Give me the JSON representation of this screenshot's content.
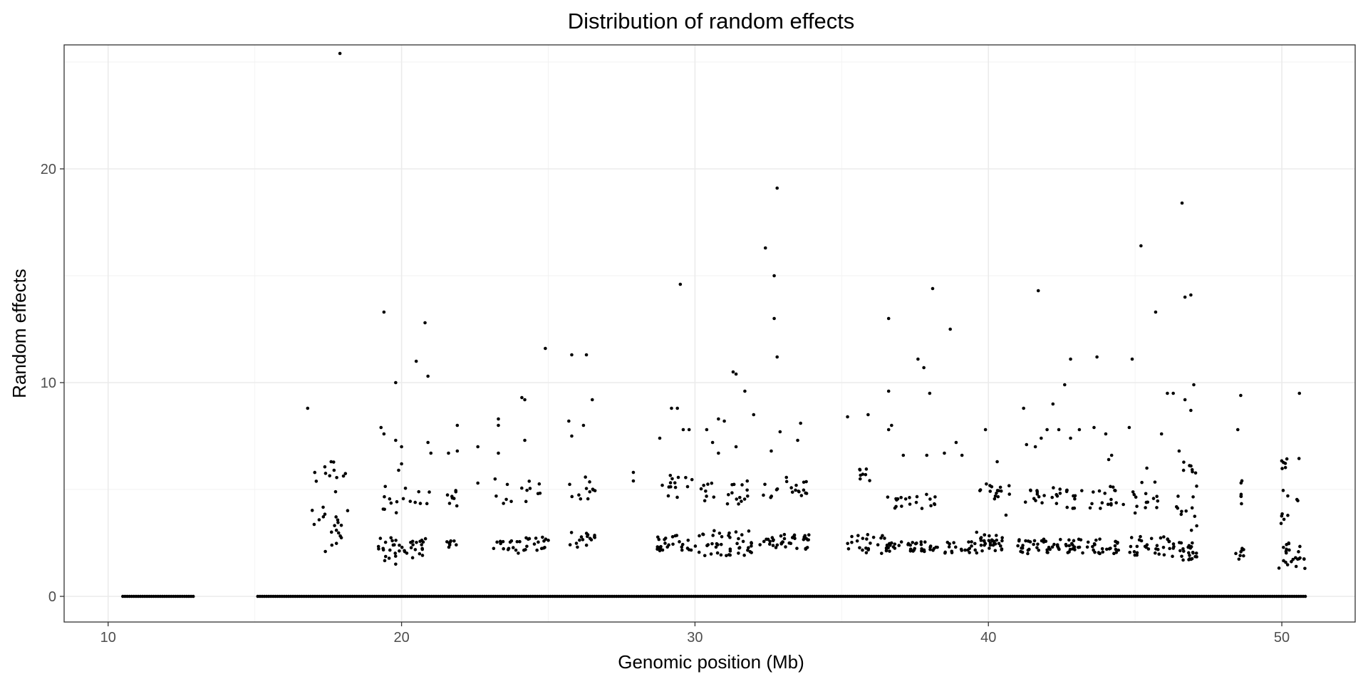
{
  "chart_data": {
    "type": "scatter",
    "title": "Distribution of random effects",
    "xlabel": "Genomic position (Mb)",
    "ylabel": "Random effects",
    "xlim": [
      8.5,
      52.5
    ],
    "ylim": [
      -1.2,
      25.8
    ],
    "x_major_ticks": [
      10,
      20,
      30,
      40,
      50
    ],
    "x_minor_ticks": [
      15,
      25,
      35,
      45
    ],
    "y_major_ticks": [
      0,
      10,
      20
    ],
    "y_minor_ticks": [
      5,
      15,
      25
    ],
    "x_tick_labels": [
      "10",
      "20",
      "30",
      "40",
      "50"
    ],
    "y_tick_labels": [
      "0",
      "10",
      "20"
    ],
    "grid": true,
    "legend": "none",
    "point_color": "#000000",
    "zero_effect_ranges_mb": [
      [
        10.5,
        12.9
      ],
      [
        15.1,
        50.8
      ]
    ],
    "clusters": [
      {
        "x": [
          16.8,
          18.2
        ],
        "y": [
          2.0,
          6.3
        ],
        "n": 30
      },
      {
        "x": [
          19.2,
          20.1
        ],
        "y": [
          1.5,
          2.8
        ],
        "n": 22
      },
      {
        "x": [
          20.1,
          21.0
        ],
        "y": [
          1.8,
          2.7
        ],
        "n": 18
      },
      {
        "x": [
          19.2,
          21.0
        ],
        "y": [
          3.9,
          5.3
        ],
        "n": 16
      },
      {
        "x": [
          21.5,
          22.0
        ],
        "y": [
          2.2,
          2.6
        ],
        "n": 8
      },
      {
        "x": [
          21.5,
          22.0
        ],
        "y": [
          4.2,
          5.3
        ],
        "n": 8
      },
      {
        "x": [
          23.1,
          24.0
        ],
        "y": [
          2.0,
          2.6
        ],
        "n": 14
      },
      {
        "x": [
          24.0,
          25.1
        ],
        "y": [
          2.1,
          2.8
        ],
        "n": 18
      },
      {
        "x": [
          23.1,
          25.1
        ],
        "y": [
          4.3,
          5.5
        ],
        "n": 14
      },
      {
        "x": [
          25.7,
          26.6
        ],
        "y": [
          2.3,
          3.0
        ],
        "n": 16
      },
      {
        "x": [
          25.7,
          26.6
        ],
        "y": [
          4.5,
          5.6
        ],
        "n": 12
      },
      {
        "x": [
          28.7,
          30.0
        ],
        "y": [
          2.1,
          2.9
        ],
        "n": 26
      },
      {
        "x": [
          28.7,
          30.0
        ],
        "y": [
          4.6,
          5.7
        ],
        "n": 14
      },
      {
        "x": [
          30.0,
          32.0
        ],
        "y": [
          1.9,
          3.1
        ],
        "n": 45
      },
      {
        "x": [
          30.0,
          32.0
        ],
        "y": [
          4.3,
          5.4
        ],
        "n": 22
      },
      {
        "x": [
          32.2,
          33.9
        ],
        "y": [
          2.2,
          2.9
        ],
        "n": 40
      },
      {
        "x": [
          32.2,
          33.9
        ],
        "y": [
          4.6,
          5.6
        ],
        "n": 20
      },
      {
        "x": [
          35.2,
          36.5
        ],
        "y": [
          2.0,
          3.0
        ],
        "n": 22
      },
      {
        "x": [
          35.6,
          36.0
        ],
        "y": [
          5.3,
          6.0
        ],
        "n": 8
      },
      {
        "x": [
          36.5,
          38.3
        ],
        "y": [
          2.1,
          2.6
        ],
        "n": 40
      },
      {
        "x": [
          36.5,
          38.3
        ],
        "y": [
          4.1,
          4.8
        ],
        "n": 20
      },
      {
        "x": [
          38.5,
          39.9
        ],
        "y": [
          2.0,
          2.6
        ],
        "n": 24
      },
      {
        "x": [
          39.7,
          40.5
        ],
        "y": [
          2.1,
          2.9
        ],
        "n": 30
      },
      {
        "x": [
          39.7,
          40.8
        ],
        "y": [
          4.5,
          5.3
        ],
        "n": 16
      },
      {
        "x": [
          41.0,
          42.5
        ],
        "y": [
          2.0,
          2.7
        ],
        "n": 36
      },
      {
        "x": [
          41.0,
          42.5
        ],
        "y": [
          4.3,
          5.2
        ],
        "n": 18
      },
      {
        "x": [
          42.6,
          44.5
        ],
        "y": [
          2.0,
          2.7
        ],
        "n": 44
      },
      {
        "x": [
          42.6,
          44.5
        ],
        "y": [
          4.1,
          5.2
        ],
        "n": 26
      },
      {
        "x": [
          44.8,
          46.2
        ],
        "y": [
          1.9,
          2.8
        ],
        "n": 30
      },
      {
        "x": [
          44.8,
          46.2
        ],
        "y": [
          4.0,
          5.4
        ],
        "n": 14
      },
      {
        "x": [
          46.2,
          47.1
        ],
        "y": [
          1.7,
          2.6
        ],
        "n": 28
      },
      {
        "x": [
          46.4,
          47.1
        ],
        "y": [
          3.0,
          6.8
        ],
        "n": 18
      },
      {
        "x": [
          48.4,
          48.7
        ],
        "y": [
          1.7,
          2.3
        ],
        "n": 8
      },
      {
        "x": [
          48.5,
          48.7
        ],
        "y": [
          3.7,
          6.1
        ],
        "n": 6
      },
      {
        "x": [
          49.9,
          50.8
        ],
        "y": [
          1.3,
          2.6
        ],
        "n": 24
      },
      {
        "x": [
          49.9,
          50.6
        ],
        "y": [
          3.4,
          6.9
        ],
        "n": 16
      }
    ],
    "points": [
      [
        17.9,
        25.4
      ],
      [
        32.8,
        19.1
      ],
      [
        46.6,
        18.4
      ],
      [
        32.4,
        16.3
      ],
      [
        45.2,
        16.4
      ],
      [
        32.7,
        15.0
      ],
      [
        29.5,
        14.6
      ],
      [
        38.1,
        14.4
      ],
      [
        41.7,
        14.3
      ],
      [
        46.7,
        14.0
      ],
      [
        46.9,
        14.1
      ],
      [
        45.7,
        13.3
      ],
      [
        19.4,
        13.3
      ],
      [
        32.7,
        13.0
      ],
      [
        36.6,
        13.0
      ],
      [
        20.8,
        12.8
      ],
      [
        38.7,
        12.5
      ],
      [
        24.9,
        11.6
      ],
      [
        20.5,
        11.0
      ],
      [
        25.8,
        11.3
      ],
      [
        26.3,
        11.3
      ],
      [
        32.8,
        11.2
      ],
      [
        42.8,
        11.1
      ],
      [
        43.7,
        11.2
      ],
      [
        44.9,
        11.1
      ],
      [
        37.6,
        11.1
      ],
      [
        37.8,
        10.7
      ],
      [
        31.3,
        10.5
      ],
      [
        31.4,
        10.4
      ],
      [
        20.9,
        10.3
      ],
      [
        19.8,
        10.0
      ],
      [
        42.6,
        9.9
      ],
      [
        47.0,
        9.9
      ],
      [
        31.7,
        9.6
      ],
      [
        36.6,
        9.6
      ],
      [
        38.0,
        9.5
      ],
      [
        46.1,
        9.5
      ],
      [
        46.3,
        9.5
      ],
      [
        26.5,
        9.2
      ],
      [
        24.1,
        9.3
      ],
      [
        24.2,
        9.2
      ],
      [
        48.6,
        9.4
      ],
      [
        50.6,
        9.5
      ],
      [
        42.2,
        9.0
      ],
      [
        16.8,
        8.8
      ],
      [
        29.2,
        8.8
      ],
      [
        29.4,
        8.8
      ],
      [
        41.2,
        8.8
      ],
      [
        46.7,
        9.2
      ],
      [
        31.0,
        8.2
      ],
      [
        30.8,
        8.3
      ],
      [
        32.0,
        8.5
      ],
      [
        23.3,
        8.3
      ],
      [
        23.3,
        8.0
      ],
      [
        35.2,
        8.4
      ],
      [
        35.9,
        8.5
      ],
      [
        36.7,
        8.0
      ],
      [
        36.6,
        7.8
      ],
      [
        29.6,
        7.8
      ],
      [
        29.8,
        7.8
      ],
      [
        30.4,
        7.8
      ],
      [
        30.6,
        7.2
      ],
      [
        28.8,
        7.4
      ],
      [
        19.3,
        7.9
      ],
      [
        19.4,
        7.6
      ],
      [
        19.8,
        7.3
      ],
      [
        20.0,
        7.0
      ],
      [
        20.9,
        7.2
      ],
      [
        21.0,
        6.7
      ],
      [
        21.9,
        8.0
      ],
      [
        21.6,
        6.7
      ],
      [
        21.9,
        6.8
      ],
      [
        22.6,
        7.0
      ],
      [
        24.2,
        7.3
      ],
      [
        25.7,
        8.2
      ],
      [
        25.8,
        7.5
      ],
      [
        26.2,
        8.0
      ],
      [
        32.6,
        6.8
      ],
      [
        32.9,
        7.7
      ],
      [
        33.6,
        8.1
      ],
      [
        33.5,
        7.3
      ],
      [
        31.4,
        7.0
      ],
      [
        38.9,
        7.2
      ],
      [
        39.9,
        7.8
      ],
      [
        41.6,
        7.0
      ],
      [
        41.8,
        7.4
      ],
      [
        42.0,
        7.8
      ],
      [
        42.4,
        7.8
      ],
      [
        42.8,
        7.4
      ],
      [
        43.1,
        7.8
      ],
      [
        43.6,
        7.9
      ],
      [
        44.0,
        7.6
      ],
      [
        44.8,
        7.9
      ],
      [
        45.4,
        6.0
      ],
      [
        46.5,
        6.8
      ],
      [
        46.9,
        8.7
      ],
      [
        48.5,
        7.8
      ],
      [
        40.3,
        6.3
      ],
      [
        39.1,
        6.6
      ],
      [
        37.9,
        6.6
      ],
      [
        37.1,
        6.6
      ],
      [
        38.5,
        6.7
      ],
      [
        41.3,
        7.1
      ],
      [
        44.1,
        6.4
      ],
      [
        45.9,
        7.6
      ],
      [
        20.0,
        6.2
      ],
      [
        19.9,
        5.9
      ],
      [
        17.6,
        6.3
      ],
      [
        17.7,
        5.9
      ],
      [
        27.9,
        5.8
      ],
      [
        27.9,
        5.4
      ],
      [
        23.3,
        6.7
      ],
      [
        30.8,
        6.7
      ],
      [
        22.6,
        5.3
      ],
      [
        39.6,
        3.0
      ],
      [
        40.6,
        3.8
      ],
      [
        44.6,
        4.3
      ],
      [
        45.0,
        3.9
      ],
      [
        47.1,
        3.3
      ],
      [
        44.2,
        6.6
      ]
    ]
  }
}
